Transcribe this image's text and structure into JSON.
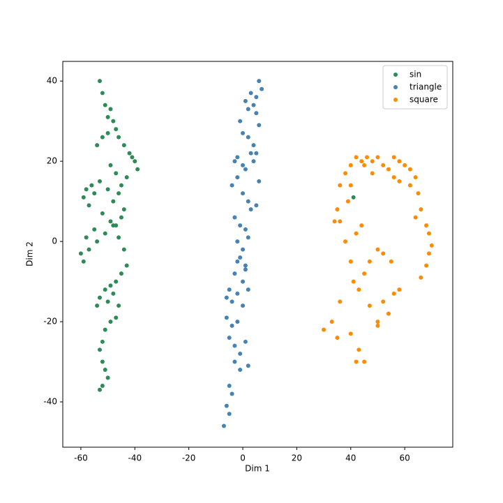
{
  "chart_data": {
    "type": "scatter",
    "x_label": "Dim 1",
    "y_label": "Dim 2",
    "xlim": [
      -66.7,
      77.8
    ],
    "ylim": [
      -51.3,
      44.9
    ],
    "xticks": [
      -60,
      -40,
      -20,
      0,
      20,
      40,
      60
    ],
    "yticks": [
      -40,
      -20,
      0,
      20,
      40
    ],
    "legend": "upper right",
    "series": [
      {
        "name": "sin",
        "color": "#2e8b57",
        "x": [
          -53,
          -52,
          -51,
          -50,
          -49,
          -48,
          -47,
          -52,
          -54,
          -50,
          -46,
          -44,
          -42,
          -40,
          -39,
          -41,
          -43,
          -45,
          -47,
          -49,
          -56,
          -58,
          -59,
          -57,
          -55,
          -53,
          -50,
          -48,
          -46,
          -44,
          -45,
          -47,
          -49,
          -52,
          -55,
          -58,
          -60,
          -59,
          -57,
          -54,
          -51,
          -48,
          -46,
          -44,
          -43,
          -45,
          -47,
          -49,
          -51,
          -53,
          -54,
          -50,
          -48,
          -46,
          -47,
          -49,
          -51,
          -52,
          -53,
          -52,
          -51,
          -50,
          -52,
          -53,
          41
        ],
        "values": [
          40,
          37,
          34,
          31,
          33,
          30,
          28,
          26,
          24,
          27,
          26,
          24,
          22,
          20,
          18,
          21,
          16,
          14,
          17,
          19,
          14,
          13,
          11,
          9,
          12,
          15,
          13,
          10,
          12,
          8,
          6,
          4,
          5,
          7,
          3,
          1,
          -3,
          -5,
          -2,
          0,
          2,
          4,
          1,
          -2,
          -6,
          -8,
          -10,
          -11,
          -12,
          -14,
          -16,
          -15,
          -13,
          -16,
          -19,
          -20,
          -22,
          -25,
          -27,
          -30,
          -32,
          -34,
          -36,
          -37,
          11
        ]
      },
      {
        "name": "triangle",
        "color": "#4682b4",
        "x": [
          6,
          7,
          5,
          4,
          3,
          2,
          1,
          5,
          6,
          -1,
          0,
          2,
          4,
          5,
          -3,
          -2,
          0,
          1,
          3,
          4,
          6,
          -4,
          -2,
          0,
          2,
          5,
          -3,
          -1,
          1,
          3,
          -2,
          0,
          2,
          -1,
          1,
          -3,
          -2,
          0,
          1,
          -5,
          -6,
          -4,
          -2,
          0,
          2,
          -6,
          -4,
          -2,
          -5,
          -3,
          -1,
          1,
          -3,
          -1,
          2,
          -5,
          -4,
          -6,
          -5,
          -7
        ],
        "values": [
          40,
          38,
          36,
          34,
          37,
          33,
          35,
          32,
          29,
          30,
          27,
          26,
          24,
          22,
          20,
          21,
          19,
          18,
          22,
          20,
          15,
          14,
          16,
          12,
          10,
          9,
          6,
          4,
          3,
          8,
          0,
          -2,
          1,
          -4,
          -6,
          -8,
          -5,
          -10,
          -7,
          -12,
          -14,
          -15,
          -13,
          -16,
          -12,
          -19,
          -21,
          -20,
          -24,
          -26,
          -28,
          -25,
          -30,
          -32,
          -31,
          -36,
          -38,
          -41,
          -43,
          -46
        ]
      },
      {
        "name": "square",
        "color": "#ff8c00",
        "x": [
          36,
          38,
          40,
          42,
          44,
          46,
          48,
          50,
          52,
          54,
          56,
          58,
          60,
          62,
          64,
          65,
          66,
          68,
          69,
          70,
          69,
          68,
          66,
          55,
          52,
          50,
          47,
          45,
          43,
          47,
          52,
          56,
          58,
          54,
          50,
          36,
          38,
          40,
          41,
          36,
          33,
          30,
          35,
          40,
          43,
          42,
          45,
          40,
          39,
          35,
          34,
          45,
          48,
          56,
          58,
          62,
          64,
          42,
          44,
          50
        ],
        "values": [
          14,
          17,
          19,
          21,
          20,
          21,
          20,
          21,
          19,
          18,
          21,
          20,
          19,
          18,
          16,
          12,
          8,
          4,
          2,
          -1,
          -3,
          -6,
          -9,
          -5,
          -3,
          -2,
          -5,
          -8,
          -12,
          -16,
          -15,
          -13,
          -12,
          -18,
          -20,
          5,
          0,
          -5,
          -10,
          -15,
          -20,
          -22,
          -24,
          -23,
          -27,
          -30,
          -30,
          14,
          10,
          8,
          5,
          19,
          17,
          16,
          15,
          14,
          6,
          2,
          4,
          -21
        ]
      }
    ]
  }
}
